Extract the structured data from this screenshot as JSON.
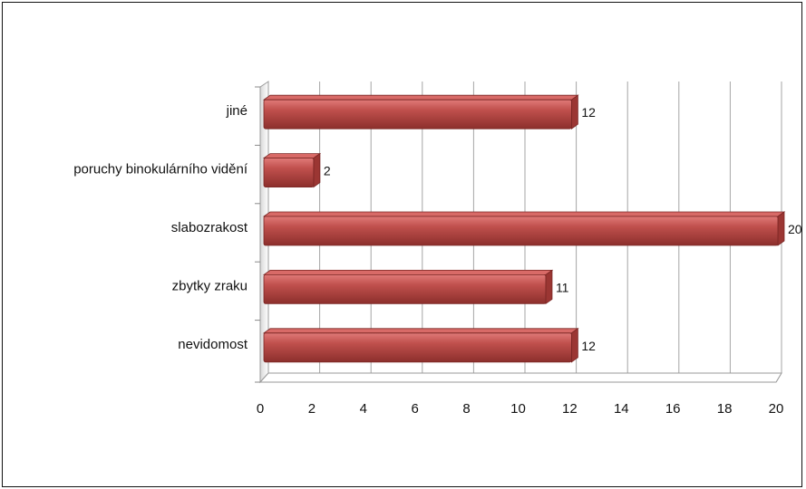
{
  "chart_data": {
    "type": "bar",
    "orientation": "horizontal",
    "style": "3d",
    "categories": [
      "jiné",
      "poruchy binokulárního vidění",
      "slabozrakost",
      "zbytky zraku",
      "nevidomost"
    ],
    "values": [
      12,
      2,
      20,
      11,
      12
    ],
    "data_labels": [
      "12",
      "2",
      "20",
      "11",
      "12"
    ],
    "xlim": [
      0,
      20
    ],
    "x_ticks": [
      "0",
      "2",
      "4",
      "6",
      "8",
      "10",
      "12",
      "14",
      "16",
      "18",
      "20"
    ],
    "grid": true,
    "legend": "none",
    "bar_color": "#c0504d"
  }
}
